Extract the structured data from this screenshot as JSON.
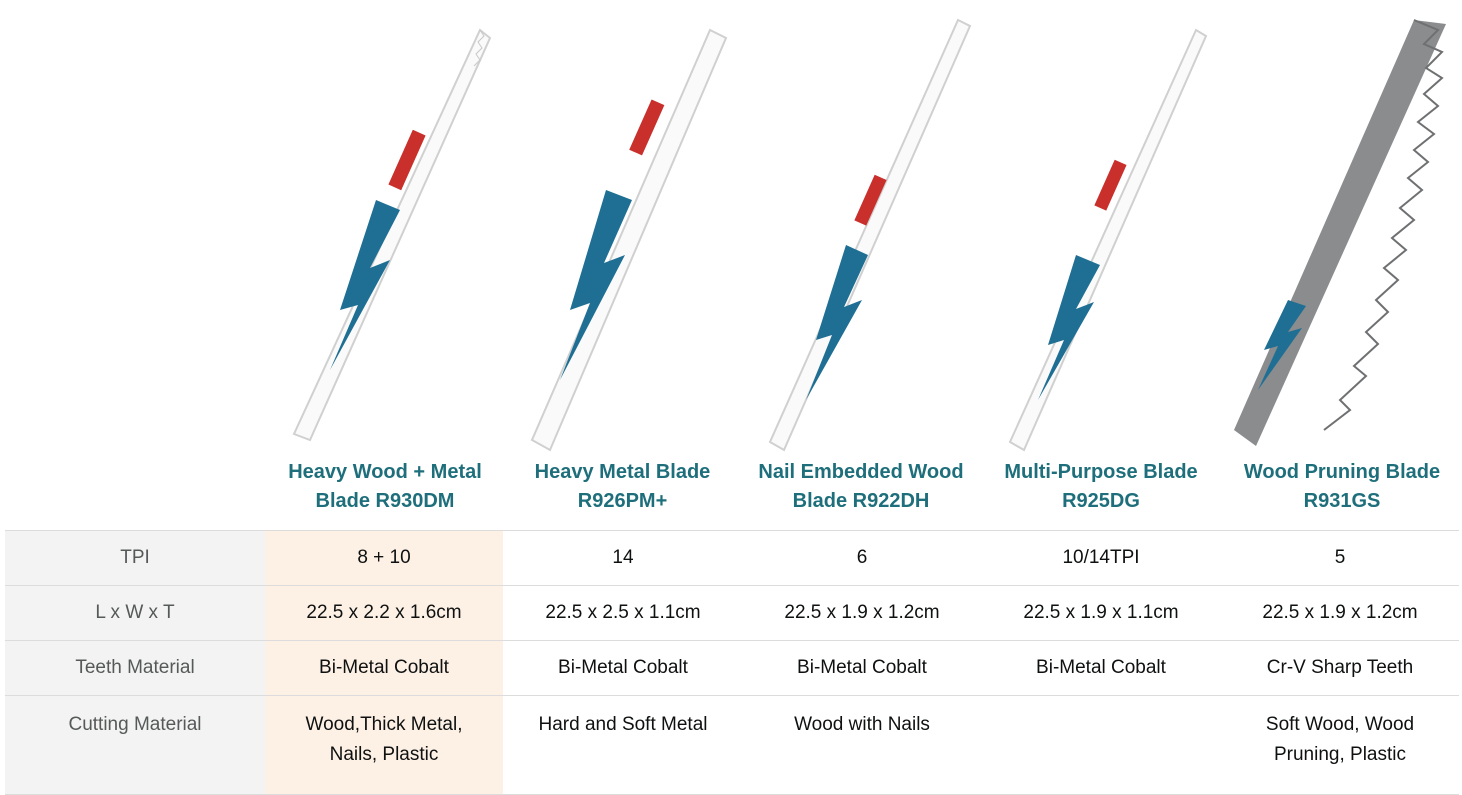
{
  "products": [
    {
      "title": "Heavy Wood + Metal\nBlade R930DM",
      "blade_color": "white"
    },
    {
      "title": "Heavy Metal Blade\nR926PM+",
      "blade_color": "white"
    },
    {
      "title": "Nail Embedded Wood\nBlade R922DH",
      "blade_color": "white"
    },
    {
      "title": "Multi-Purpose Blade\nR925DG",
      "blade_color": "white"
    },
    {
      "title": "Wood Pruning Blade\nR931GS",
      "blade_color": "gray"
    }
  ],
  "rows": [
    {
      "label": "TPI",
      "values": [
        "8 + 10",
        "14",
        "6",
        "10/14TPI",
        "5"
      ]
    },
    {
      "label": "L x W x T",
      "values": [
        "22.5 x 2.2 x 1.6cm",
        "22.5 x 2.5 x 1.1cm",
        "22.5 x 1.9 x 1.2cm",
        "22.5 x 1.9 x 1.1cm",
        "22.5 x 1.9 x 1.2cm"
      ]
    },
    {
      "label": "Teeth Material",
      "values": [
        "Bi-Metal Cobalt",
        "Bi-Metal Cobalt",
        "Bi-Metal Cobalt",
        "Bi-Metal Cobalt",
        "Cr-V Sharp Teeth"
      ]
    },
    {
      "label": "Cutting Material",
      "values": [
        "Wood,Thick Metal,\nNails, Plastic",
        "Hard and Soft Metal",
        "Wood with Nails",
        "",
        "Soft Wood, Wood\nPruning, Plastic"
      ]
    }
  ],
  "colors": {
    "title": "#1e6f7b",
    "highlight": "#fdf1e6",
    "rowhead_bg": "#f3f3f3",
    "blade_blue": "#1f6f94",
    "blade_gray": "#8a8c8e"
  }
}
